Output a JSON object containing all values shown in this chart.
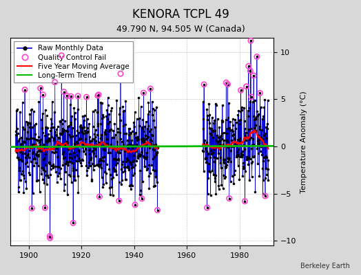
{
  "title": "KENORA TCPL 49",
  "subtitle": "49.790 N, 94.505 W (Canada)",
  "ylabel": "Temperature Anomaly (°C)",
  "credit": "Berkeley Earth",
  "ylim": [
    -10.5,
    11.5
  ],
  "xlim": [
    1893,
    1993
  ],
  "yticks": [
    -10,
    -5,
    0,
    5,
    10
  ],
  "xticks": [
    1900,
    1920,
    1940,
    1960,
    1980
  ],
  "data_start1": 1895,
  "data_end1": 1948,
  "data_start2": 1966,
  "data_end2": 1990,
  "seed": 42,
  "raw_color": "#0000cc",
  "dot_color": "#000000",
  "qc_color": "#ff44cc",
  "ma_color": "#ff0000",
  "trend_color": "#00bb00",
  "bg_color": "#d8d8d8",
  "plot_bg": "#ffffff",
  "grid_color": "#aaaaaa",
  "title_fontsize": 12,
  "subtitle_fontsize": 9,
  "axis_label_fontsize": 8,
  "tick_fontsize": 8,
  "legend_fontsize": 7.5
}
